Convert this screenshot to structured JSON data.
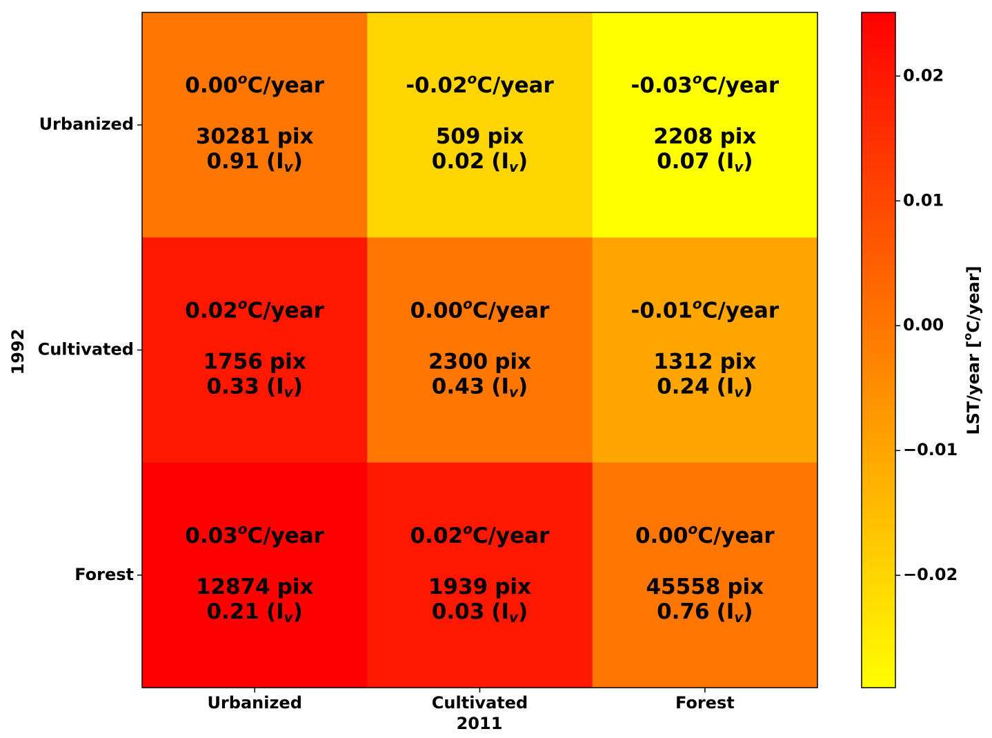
{
  "chart_data": {
    "type": "heatmap",
    "x_label": "2011",
    "y_label": "1992",
    "x_categories": [
      "Urbanized",
      "Cultivated",
      "Forest"
    ],
    "y_categories": [
      "Urbanized",
      "Cultivated",
      "Forest"
    ],
    "values": [
      [
        0.0,
        -0.02,
        -0.03
      ],
      [
        0.02,
        0.0,
        -0.01
      ],
      [
        0.03,
        0.02,
        0.0
      ]
    ],
    "value_labels": [
      [
        "0.00",
        "-0.02",
        "-0.03"
      ],
      [
        "0.02",
        "0.00",
        "-0.01"
      ],
      [
        "0.03",
        "0.02",
        "0.00"
      ]
    ],
    "value_unit": {
      "sup": "o",
      "text": "C/year"
    },
    "pixel_counts": [
      [
        30281,
        509,
        2208
      ],
      [
        1756,
        2300,
        1312
      ],
      [
        12874,
        1939,
        45558
      ]
    ],
    "pixel_unit": "pix",
    "iv": [
      [
        0.91,
        0.02,
        0.07
      ],
      [
        0.33,
        0.43,
        0.24
      ],
      [
        0.21,
        0.03,
        0.76
      ]
    ],
    "iv_label": {
      "open": "(I",
      "sub": "v",
      "close": ")"
    },
    "colormap": {
      "low": "#ffff00",
      "high": "#ff0000"
    },
    "clim": [
      -0.029,
      0.0251
    ],
    "colorbar_label": {
      "before": "LST/year [",
      "sup": "o",
      "after": "C/year]"
    },
    "colorbar_ticks": [
      {
        "value": 0.02,
        "label": "0.02"
      },
      {
        "value": 0.01,
        "label": "0.01"
      },
      {
        "value": 0,
        "label": "0.00"
      },
      {
        "value": -0.01,
        "label": "−0.01"
      },
      {
        "value": -0.02,
        "label": "−0.02"
      }
    ]
  }
}
